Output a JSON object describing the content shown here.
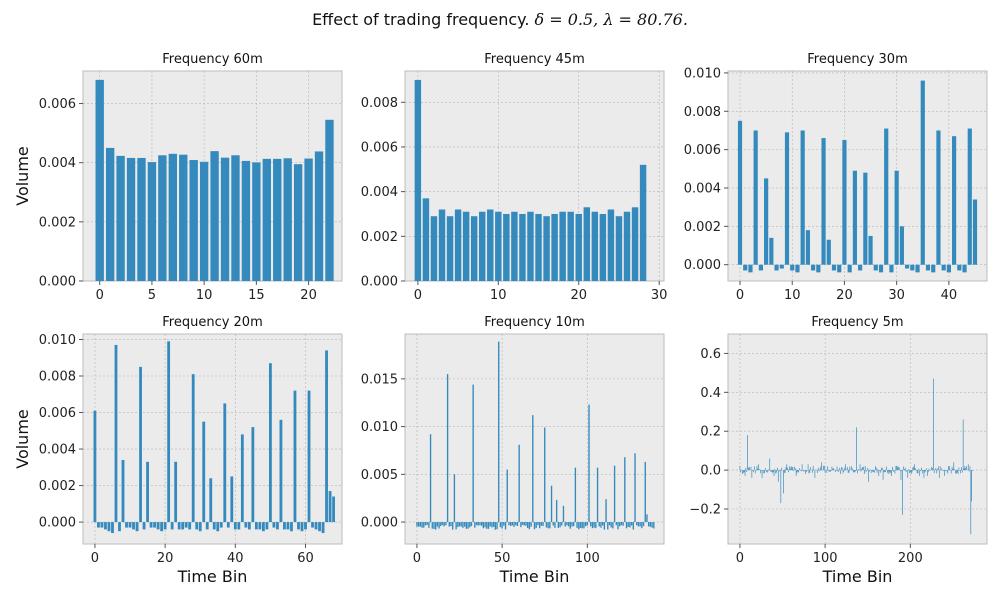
{
  "figure": {
    "title_text": "Effect of trading frequency.",
    "title_math": "δ = 0.5, λ = 80.76."
  },
  "style": {
    "panel_bg": "#ebebeb",
    "grid": "#b5b5b5",
    "bar": "#348abd",
    "axis_text": "#222222"
  },
  "chart_data": [
    {
      "type": "bar",
      "title": "Frequency 60m",
      "ylabel": "Volume",
      "xlabel": "",
      "xlim": [
        -1.6,
        23.2
      ],
      "ylim": [
        0,
        0.0071
      ],
      "xticks": [
        0,
        5,
        10,
        15,
        20
      ],
      "yticks": [
        0,
        0.002,
        0.004,
        0.006
      ],
      "ytick_labels": [
        "0.000",
        "0.002",
        "0.004",
        "0.006"
      ],
      "bar_width": 0.8,
      "values": [
        0.0068,
        0.0045,
        0.00423,
        0.00416,
        0.00416,
        0.00402,
        0.00425,
        0.0043,
        0.00427,
        0.00409,
        0.00403,
        0.00439,
        0.00417,
        0.00425,
        0.00406,
        0.00401,
        0.00413,
        0.00413,
        0.00415,
        0.00395,
        0.00414,
        0.00438,
        0.00545
      ]
    },
    {
      "type": "bar",
      "title": "Frequency 45m",
      "ylabel": "",
      "xlabel": "",
      "xlim": [
        -1.6,
        30.6
      ],
      "ylim": [
        0,
        0.0094
      ],
      "xticks": [
        0,
        10,
        20,
        30
      ],
      "yticks": [
        0,
        0.002,
        0.004,
        0.006,
        0.008
      ],
      "ytick_labels": [
        "0.000",
        "0.002",
        "0.004",
        "0.006",
        "0.008"
      ],
      "bar_width": 0.8,
      "values": [
        0.009,
        0.0037,
        0.0029,
        0.0032,
        0.0029,
        0.0032,
        0.0031,
        0.0029,
        0.0031,
        0.0032,
        0.0031,
        0.003,
        0.0031,
        0.003,
        0.0031,
        0.003,
        0.0029,
        0.003,
        0.0031,
        0.0031,
        0.003,
        0.0033,
        0.0031,
        0.003,
        0.0032,
        0.0029,
        0.0031,
        0.0033,
        0.0052
      ]
    },
    {
      "type": "bar",
      "title": "Frequency 30m",
      "ylabel": "",
      "xlabel": "",
      "xlim": [
        -2.3,
        47.3
      ],
      "ylim": [
        -0.00085,
        0.0101
      ],
      "xticks": [
        0,
        10,
        20,
        30,
        40
      ],
      "yticks": [
        0,
        0.002,
        0.004,
        0.006,
        0.008,
        0.01
      ],
      "ytick_labels": [
        "0.000",
        "0.002",
        "0.004",
        "0.006",
        "0.008",
        "0.010"
      ],
      "bar_width": 0.8,
      "values": [
        0.0075,
        -0.0003,
        -0.0004,
        0.007,
        -0.0003,
        0.0045,
        0.0014,
        -0.0003,
        -0.0002,
        0.0069,
        -0.0003,
        -0.0004,
        0.007,
        0.0018,
        -0.0003,
        -0.0004,
        0.0066,
        0.0013,
        -0.0003,
        -0.0004,
        0.0065,
        -0.0004,
        0.0049,
        -0.0003,
        0.0048,
        0.0015,
        -0.0003,
        -0.0004,
        0.0071,
        -0.0004,
        0.0049,
        0.002,
        -0.0002,
        -0.0003,
        -0.0004,
        0.0096,
        -0.0003,
        -0.0004,
        0.007,
        -0.0003,
        -0.0004,
        0.0067,
        -0.0003,
        -0.0004,
        0.0071,
        0.0034
      ]
    },
    {
      "type": "bar",
      "title": "Frequency 20m",
      "ylabel": "Volume",
      "xlabel": "Time Bin",
      "xlim": [
        -3.4,
        70.4
      ],
      "ylim": [
        -0.0012,
        0.0103
      ],
      "xticks": [
        0,
        20,
        40,
        60
      ],
      "yticks": [
        0,
        0.002,
        0.004,
        0.006,
        0.008,
        0.01
      ],
      "ytick_labels": [
        "0.000",
        "0.002",
        "0.004",
        "0.006",
        "0.008",
        "0.010"
      ],
      "bar_width": 0.8,
      "values": [
        0.0061,
        -0.0003,
        -0.0003,
        -0.0004,
        -0.0005,
        -0.0006,
        0.0097,
        -0.0005,
        0.0034,
        -0.0003,
        -0.0003,
        -0.0004,
        -0.0005,
        0.0085,
        -0.0004,
        0.0033,
        -0.0003,
        -0.0003,
        -0.0004,
        -0.0005,
        -0.0004,
        0.0099,
        -0.0004,
        0.0033,
        -0.0004,
        -0.0004,
        -0.0003,
        -0.0004,
        0.0081,
        -0.0004,
        -0.0005,
        0.0055,
        -0.0004,
        0.0024,
        -0.0004,
        -0.0005,
        -0.0003,
        0.0065,
        -0.0003,
        0.0025,
        -0.0004,
        -0.0004,
        0.0048,
        -0.0003,
        -0.0004,
        0.0052,
        -0.0004,
        -0.0004,
        -0.0005,
        -0.0004,
        0.0087,
        -0.0003,
        -0.0004,
        0.0056,
        -0.0004,
        -0.0004,
        -0.0005,
        0.0072,
        -0.0004,
        -0.0005,
        -0.0004,
        0.0072,
        -0.0003,
        -0.0004,
        -0.0005,
        -0.0006,
        0.0094,
        0.0017,
        0.0014
      ]
    },
    {
      "type": "bar",
      "title": "Frequency 10m",
      "ylabel": "",
      "xlabel": "Time Bin",
      "xlim": [
        -7,
        145
      ],
      "ylim": [
        -0.0023,
        0.0197
      ],
      "xticks": [
        0,
        50,
        100
      ],
      "yticks": [
        0,
        0.005,
        0.01,
        0.015
      ],
      "ytick_labels": [
        "0.000",
        "0.005",
        "0.010",
        "0.015"
      ],
      "bar_width": 0.8,
      "spikes": [
        [
          8,
          0.0092
        ],
        [
          18,
          0.0155
        ],
        [
          22,
          0.005
        ],
        [
          33,
          0.0144
        ],
        [
          48,
          0.0189
        ],
        [
          53,
          0.0055
        ],
        [
          60,
          0.0081
        ],
        [
          68,
          0.0112
        ],
        [
          75,
          0.0099
        ],
        [
          79,
          0.0038
        ],
        [
          82,
          0.0023
        ],
        [
          86,
          0.0017
        ],
        [
          93,
          0.0057
        ],
        [
          101,
          0.0123
        ],
        [
          106,
          0.0057
        ],
        [
          111,
          0.0024
        ],
        [
          116,
          0.0059
        ],
        [
          122,
          0.0068
        ],
        [
          128,
          0.0072
        ],
        [
          134,
          0.0063
        ],
        [
          135,
          0.0008
        ]
      ],
      "baseline": "small negative bars (about -0.0003 to -0.0008) on all other bins from 0 to 139"
    },
    {
      "type": "bar",
      "title": "Frequency 5m",
      "ylabel": "",
      "xlabel": "Time Bin",
      "xlim": [
        -14,
        290
      ],
      "ylim": [
        -0.38,
        0.7
      ],
      "xticks": [
        0,
        100,
        200
      ],
      "yticks": [
        -0.2,
        0,
        0.2,
        0.4,
        0.6
      ],
      "ytick_labels": [
        "−0.2",
        "0.0",
        "0.2",
        "0.4",
        "0.6"
      ],
      "bar_width": 0.8,
      "spikes": [
        [
          3,
          -0.02
        ],
        [
          6,
          -0.03
        ],
        [
          9,
          0.18
        ],
        [
          14,
          -0.04
        ],
        [
          22,
          0.03
        ],
        [
          26,
          -0.04
        ],
        [
          35,
          0.06
        ],
        [
          40,
          -0.03
        ],
        [
          45,
          -0.06
        ],
        [
          48,
          -0.17
        ],
        [
          51,
          -0.12
        ],
        [
          55,
          0.03
        ],
        [
          60,
          0.02
        ],
        [
          66,
          -0.03
        ],
        [
          70,
          0.01
        ],
        [
          73,
          0.03
        ],
        [
          77,
          -0.02
        ],
        [
          80,
          0.03
        ],
        [
          88,
          -0.04
        ],
        [
          96,
          0.04
        ],
        [
          103,
          0.02
        ],
        [
          110,
          0.01
        ],
        [
          118,
          -0.02
        ],
        [
          124,
          0.03
        ],
        [
          131,
          0.02
        ],
        [
          137,
          0.22
        ],
        [
          141,
          0.03
        ],
        [
          146,
          -0.02
        ],
        [
          151,
          -0.06
        ],
        [
          159,
          0.02
        ],
        [
          163,
          -0.03
        ],
        [
          168,
          -0.05
        ],
        [
          174,
          -0.02
        ],
        [
          178,
          -0.03
        ],
        [
          183,
          0.02
        ],
        [
          189,
          -0.05
        ],
        [
          191,
          -0.23
        ],
        [
          197,
          -0.04
        ],
        [
          201,
          -0.02
        ],
        [
          205,
          0.03
        ],
        [
          211,
          -0.03
        ],
        [
          216,
          -0.04
        ],
        [
          220,
          -0.03
        ],
        [
          227,
          0.47
        ],
        [
          230,
          0.01
        ],
        [
          234,
          -0.04
        ],
        [
          240,
          -0.03
        ],
        [
          246,
          0.02
        ],
        [
          251,
          0.04
        ],
        [
          256,
          -0.02
        ],
        [
          262,
          0.26
        ],
        [
          266,
          0.02
        ],
        [
          268,
          0.03
        ],
        [
          271,
          -0.33
        ],
        [
          272,
          -0.16
        ]
      ],
      "baseline": "small bars of about ±0.01–0.02 on all other bins from 0 to 273"
    }
  ]
}
